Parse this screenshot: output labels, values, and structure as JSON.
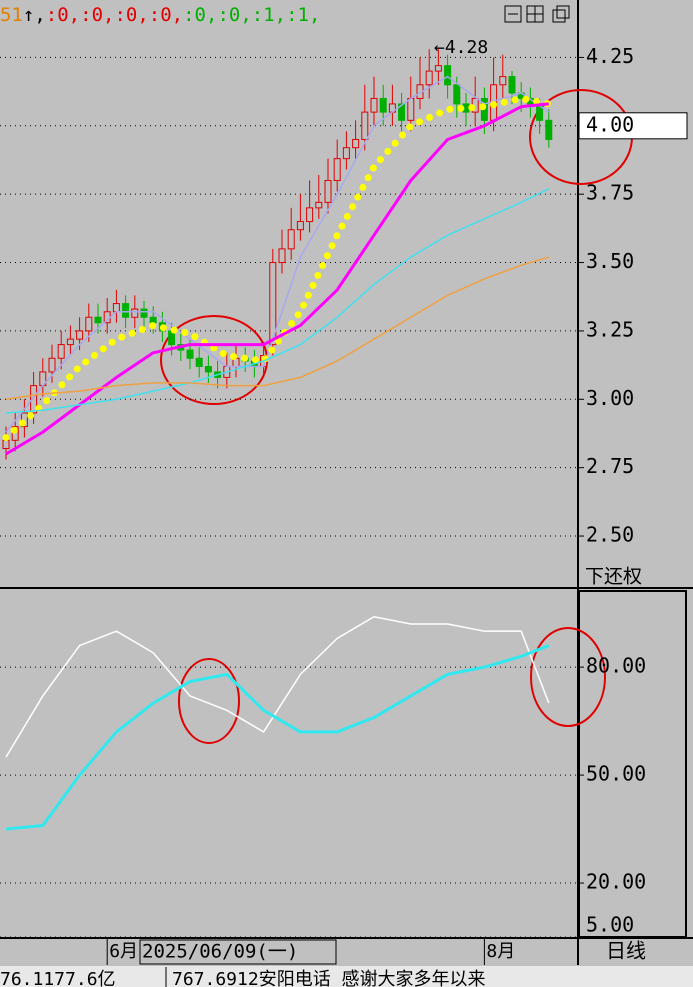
{
  "chart_data": [
    {
      "type": "candlestick",
      "header": [
        {
          "text": "51",
          "color": "#e08000"
        },
        {
          "text": "↑",
          "color": "#000000"
        },
        {
          "text": ",",
          "color": "#000000"
        },
        {
          "text": ":0,",
          "color": "#e00000"
        },
        {
          "text": ":0,",
          "color": "#e00000"
        },
        {
          "text": ":0,",
          "color": "#e00000"
        },
        {
          "text": ":0,",
          "color": "#e00000"
        },
        {
          "text": ":0,",
          "color": "#00b000"
        },
        {
          "text": ":0,",
          "color": "#00b000"
        },
        {
          "text": ":1,",
          "color": "#00b000"
        },
        {
          "text": ":1,",
          "color": "#00b000"
        }
      ],
      "annotation": "←4.28",
      "adjust_label": "下还权",
      "up_color": "#e00000",
      "down_color": "#00b000",
      "open": [
        2.82,
        2.85,
        2.9,
        2.95,
        3.05,
        3.1,
        3.15,
        3.2,
        3.22,
        3.25,
        3.3,
        3.28,
        3.32,
        3.35,
        3.3,
        3.33,
        3.3,
        3.28,
        3.25,
        3.2,
        3.18,
        3.15,
        3.12,
        3.1,
        3.08,
        3.12,
        3.15,
        3.14,
        3.12,
        3.2,
        3.5,
        3.55,
        3.62,
        3.65,
        3.7,
        3.72,
        3.8,
        3.88,
        3.92,
        3.95,
        4.05,
        4.1,
        4.05,
        4.08,
        4.02,
        4.1,
        4.15,
        4.2,
        4.22,
        4.15,
        4.08,
        4.05,
        4.1,
        4.02,
        4.15,
        4.18,
        4.12,
        4.1,
        4.08,
        4.02
      ],
      "high": [
        2.9,
        2.95,
        3.0,
        3.1,
        3.15,
        3.2,
        3.25,
        3.27,
        3.3,
        3.35,
        3.35,
        3.37,
        3.4,
        3.38,
        3.38,
        3.36,
        3.34,
        3.32,
        3.28,
        3.24,
        3.22,
        3.19,
        3.16,
        3.14,
        3.17,
        3.2,
        3.19,
        3.18,
        3.21,
        3.55,
        3.62,
        3.7,
        3.75,
        3.8,
        3.82,
        3.88,
        3.95,
        3.98,
        4.02,
        4.15,
        4.18,
        4.15,
        4.15,
        4.12,
        4.18,
        4.25,
        4.28,
        4.28,
        4.26,
        4.18,
        4.12,
        4.18,
        4.14,
        4.25,
        4.26,
        4.2,
        4.16,
        4.14,
        4.1,
        4.06
      ],
      "low": [
        2.78,
        2.81,
        2.86,
        2.91,
        3.01,
        3.06,
        3.11,
        3.16,
        3.18,
        3.21,
        3.24,
        3.24,
        3.28,
        3.26,
        3.26,
        3.26,
        3.24,
        3.21,
        3.16,
        3.14,
        3.11,
        3.08,
        3.06,
        3.04,
        3.04,
        3.08,
        3.1,
        3.08,
        3.08,
        3.16,
        3.46,
        3.51,
        3.58,
        3.61,
        3.66,
        3.68,
        3.76,
        3.84,
        3.88,
        3.91,
        4.0,
        4.0,
        4.0,
        3.98,
        3.98,
        4.06,
        4.1,
        4.15,
        4.1,
        4.03,
        4.0,
        4.0,
        3.97,
        3.98,
        4.1,
        4.08,
        4.05,
        4.03,
        3.97,
        3.92
      ],
      "close": [
        2.85,
        2.9,
        2.95,
        3.05,
        3.1,
        3.15,
        3.2,
        3.22,
        3.25,
        3.3,
        3.28,
        3.32,
        3.35,
        3.3,
        3.33,
        3.3,
        3.28,
        3.25,
        3.2,
        3.18,
        3.15,
        3.12,
        3.1,
        3.08,
        3.12,
        3.15,
        3.14,
        3.12,
        3.16,
        3.5,
        3.55,
        3.62,
        3.65,
        3.7,
        3.72,
        3.8,
        3.88,
        3.92,
        3.95,
        4.05,
        4.1,
        4.05,
        4.08,
        4.02,
        4.1,
        4.15,
        4.2,
        4.22,
        4.15,
        4.08,
        4.05,
        4.1,
        4.02,
        4.15,
        4.18,
        4.12,
        4.1,
        4.08,
        4.02,
        3.95
      ],
      "series": [
        {
          "color": "#a8a8f0",
          "x": [
            0,
            4,
            8,
            12,
            16,
            20,
            24,
            28,
            32,
            36,
            40,
            44,
            48,
            52,
            56,
            59
          ],
          "values": [
            2.88,
            3.05,
            3.2,
            3.32,
            3.32,
            3.22,
            3.12,
            3.12,
            3.52,
            3.75,
            4.0,
            4.1,
            4.18,
            4.08,
            4.12,
            4.05
          ]
        },
        {
          "color": "#ffff00",
          "style": "dots",
          "x": [
            0,
            4,
            8,
            12,
            16,
            20,
            24,
            28,
            32,
            36,
            40,
            44,
            48,
            52,
            56,
            59
          ],
          "values": [
            2.86,
            2.98,
            3.12,
            3.22,
            3.27,
            3.24,
            3.16,
            3.14,
            3.32,
            3.6,
            3.85,
            4.0,
            4.06,
            4.07,
            4.1,
            4.08
          ]
        },
        {
          "color": "#ff00ff",
          "width": 3,
          "x": [
            0,
            4,
            8,
            12,
            16,
            20,
            24,
            28,
            32,
            36,
            40,
            44,
            48,
            52,
            56,
            59
          ],
          "values": [
            2.8,
            2.88,
            2.98,
            3.08,
            3.17,
            3.2,
            3.2,
            3.2,
            3.27,
            3.4,
            3.6,
            3.8,
            3.95,
            4.0,
            4.07,
            4.08
          ]
        },
        {
          "color": "#40e0f0",
          "x": [
            0,
            4,
            8,
            12,
            16,
            20,
            24,
            28,
            32,
            36,
            40,
            44,
            48,
            52,
            56,
            59
          ],
          "values": [
            2.95,
            2.96,
            2.98,
            3.0,
            3.03,
            3.06,
            3.1,
            3.14,
            3.2,
            3.3,
            3.42,
            3.52,
            3.6,
            3.66,
            3.72,
            3.77
          ]
        },
        {
          "color": "#f0a040",
          "x": [
            0,
            4,
            8,
            12,
            16,
            20,
            24,
            28,
            32,
            36,
            40,
            44,
            48,
            52,
            56,
            59
          ],
          "values": [
            3.0,
            3.02,
            3.03,
            3.05,
            3.06,
            3.06,
            3.05,
            3.05,
            3.08,
            3.14,
            3.22,
            3.3,
            3.38,
            3.44,
            3.49,
            3.52
          ]
        }
      ],
      "ylim": [
        2.31,
        4.46
      ],
      "yticks": [
        {
          "value": 2.5,
          "label": "2.50"
        },
        2.75,
        {
          "value": 3.0,
          "label": "3.00"
        },
        3.25,
        {
          "value": 3.5,
          "label": "3.50"
        },
        3.75,
        {
          "value": 4.0,
          "label": "4.00"
        },
        4.25
      ],
      "grid": true
    },
    {
      "type": "line",
      "series": [
        {
          "color": "#ffffff",
          "x": [
            0,
            4,
            8,
            12,
            16,
            20,
            24,
            28,
            32,
            36,
            40,
            44,
            48,
            52,
            56,
            59
          ],
          "values": [
            55,
            72,
            86,
            90,
            84,
            72,
            68,
            62,
            78,
            88,
            94,
            92,
            92,
            90,
            90,
            70
          ]
        },
        {
          "color": "#30e8f0",
          "width": 3,
          "x": [
            0,
            4,
            8,
            12,
            16,
            20,
            24,
            28,
            32,
            36,
            40,
            44,
            48,
            52,
            56,
            59
          ],
          "values": [
            35,
            36,
            50,
            62,
            70,
            76,
            78,
            68,
            62,
            62,
            66,
            72,
            78,
            80,
            83,
            86
          ]
        }
      ],
      "ylim": [
        5,
        102
      ],
      "yticks": [
        {
          "value": 80,
          "label": "80.00"
        },
        {
          "value": 50,
          "label": "50.00"
        },
        {
          "value": 20,
          "label": "20.00"
        },
        {
          "value": 5,
          "label": "5.00"
        }
      ],
      "grid": true
    },
    {
      "type": "footer",
      "month_labels": [
        {
          "index": 11,
          "label": "6月"
        },
        {
          "index": 52,
          "label": "8月"
        }
      ],
      "cursor_date": "2025/06/09(一)",
      "period": "日线",
      "status": [
        "76.1177.6亿",
        "767.6912安阳电话 感谢大家多年以来"
      ]
    }
  ]
}
